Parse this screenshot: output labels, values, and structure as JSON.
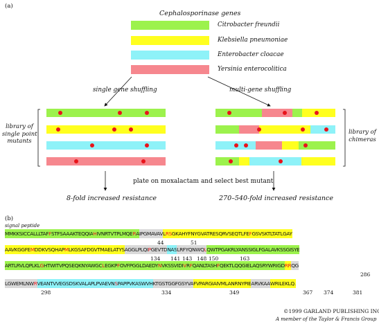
{
  "panel_a_label": "(a)",
  "panel_b_label": "(b)",
  "legend_title": "Cephalosporinase genes",
  "legend": [
    {
      "label": "Citrobacter freundii",
      "color": "#9cf24d"
    },
    {
      "label": "Klebsiella pneumoniae",
      "color": "#ffff1f"
    },
    {
      "label": "Enterobacter cloacae",
      "color": "#8ef2f8"
    },
    {
      "label": "Yersinia enterocolitica",
      "color": "#f6878e"
    }
  ],
  "single_heading": "single gene shuffling",
  "multi_heading": "multi-gene shuffling",
  "left_side_label": [
    "library of",
    "single point",
    "mutants"
  ],
  "right_side_label": [
    "library of",
    "chimeras"
  ],
  "plate_caption": "plate on moxalactam and select best mutant",
  "result_left": "8-fold increased resistance",
  "result_right": "270–540-fold increased resistance",
  "signal_peptide": "signal peptide",
  "sequence_lines": [
    [
      {
        "t": "MMKKSICCALLLTAF",
        "c": "g"
      },
      {
        "t": "F",
        "c": "g",
        "r": true
      },
      {
        "t": "STFSAAAKTEQQIA",
        "c": "g"
      },
      {
        "t": "H",
        "c": "g",
        "r": true
      },
      {
        "t": "IVNRTVTPLMQE",
        "c": "g"
      },
      {
        "t": "R",
        "c": "g",
        "r": true
      },
      {
        "t": "A",
        "c": "g"
      },
      {
        "t": "IPGMAVAV",
        "c": "w"
      },
      {
        "t": "L",
        "c": "y"
      },
      {
        "t": "RS",
        "c": "y",
        "r": true
      },
      {
        "t": "GKAHYFNYGVATRESQRVSEQTLFE",
        "c": "y"
      },
      {
        "t": "F",
        "c": "y",
        "r": true
      },
      {
        "t": "GSVSKTLTATLGAY",
        "c": "y"
      }
    ],
    [
      {
        "t": "AAVKGGFE",
        "c": "y"
      },
      {
        "t": "M",
        "c": "y",
        "r": true
      },
      {
        "t": "DDKVSQHAP",
        "c": "y"
      },
      {
        "t": "M",
        "c": "y",
        "r": true
      },
      {
        "t": "LKGSAFDGVTMAELATYS",
        "c": "y"
      },
      {
        "t": "AGGLPLQI",
        "c": "w"
      },
      {
        "t": "P",
        "c": "w",
        "r": true
      },
      {
        "t": "GEVTD",
        "c": "w"
      },
      {
        "t": "NAS",
        "c": "b"
      },
      {
        "t": "LRFYQNWQ",
        "c": "w"
      },
      {
        "t": "L",
        "c": "w",
        "r": true
      },
      {
        "t": "QWTPGAKRLYANSSIGLFGALAVKSSGISYE",
        "c": "g"
      }
    ],
    [
      {
        "t": "ARTLRVLQPLKL",
        "c": "g"
      },
      {
        "t": "G",
        "c": "g",
        "r": true
      },
      {
        "t": "HTWITVPQSEQKNYAWGC",
        "c": "g"
      },
      {
        "t": "L",
        "c": "g",
        "r": true
      },
      {
        "t": "EGKP",
        "c": "g"
      },
      {
        "t": "F",
        "c": "g",
        "r": true
      },
      {
        "t": "OVFPGGLDAEDY",
        "c": "g"
      },
      {
        "t": "N",
        "c": "g",
        "r": true
      },
      {
        "t": "VKSSVIDI",
        "c": "g"
      },
      {
        "t": "V",
        "c": "g",
        "r": true
      },
      {
        "t": "R",
        "c": "g"
      },
      {
        "t": "F",
        "c": "g",
        "r": true
      },
      {
        "t": "QANLTASH",
        "c": "g"
      },
      {
        "t": "F",
        "c": "g",
        "r": true
      },
      {
        "t": "QEKTLQQGIELAQSRYWRIGD",
        "c": "g"
      },
      {
        "t": "RR",
        "c": "y",
        "r": true
      },
      {
        "t": "QG",
        "c": "w"
      }
    ],
    [
      {
        "t": "LGWEMLNW",
        "c": "w"
      },
      {
        "t": "R",
        "c": "w",
        "r": true
      },
      {
        "t": "VEANTVVEGSDSKVALAPLPVAEVN",
        "c": "b"
      },
      {
        "t": "S",
        "c": "b",
        "r": true
      },
      {
        "t": "PAPPVKASWVH",
        "c": "b"
      },
      {
        "t": "KTGSTGGFGSYVA",
        "c": "w"
      },
      {
        "t": "FVPARGIAIVMLANRNYPIE",
        "c": "y"
      },
      {
        "t": "ARVKAA",
        "c": "w"
      },
      {
        "t": "WRILEKLQ.",
        "c": "y"
      }
    ]
  ],
  "position_numbers": [
    {
      "text": "44",
      "row": 0
    },
    {
      "text": "51",
      "row": 0
    },
    {
      "text": "134",
      "row": 1
    },
    {
      "text": "141",
      "row": 1
    },
    {
      "text": "143",
      "row": 1
    },
    {
      "text": "148",
      "row": 1
    },
    {
      "text": "150",
      "row": 1
    },
    {
      "text": "163",
      "row": 1
    },
    {
      "text": "286",
      "row": 2
    },
    {
      "text": "298",
      "row": 3
    },
    {
      "text": "334",
      "row": 3
    },
    {
      "text": "349",
      "row": 3
    },
    {
      "text": "367",
      "row": 3
    },
    {
      "text": "374",
      "row": 3
    },
    {
      "text": "381",
      "row": 3
    }
  ],
  "colors": {
    "g": "#9cf24d",
    "y": "#ffff1f",
    "b": "#8ef2f8",
    "p": "#f6878e",
    "w": "#d9d9d9",
    "red_residue": "#e8141b",
    "dot": "#e8141b"
  },
  "copyright_line1": "©1999 GARLAND PUBLISHING INC.",
  "copyright_line2": "A member of the Taylor & Francis Group"
}
